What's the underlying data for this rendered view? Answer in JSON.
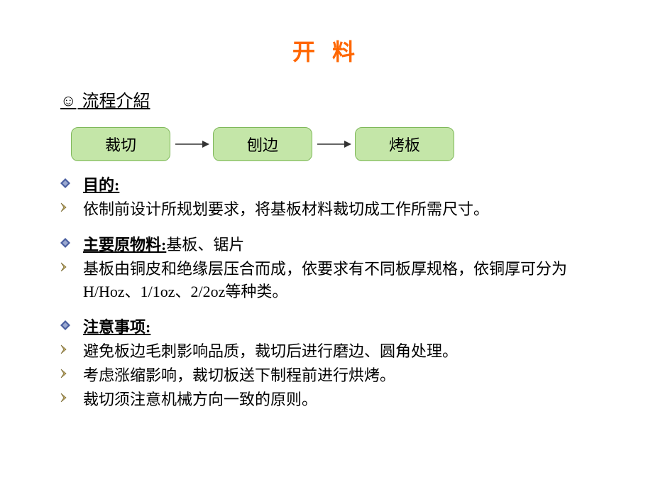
{
  "title": "开 料",
  "heading_prefix": "☺",
  "heading": " 流程介紹",
  "flow": {
    "nodes": [
      "裁切",
      "刨边",
      "烤板"
    ],
    "box_bg": "#c4e6a8",
    "box_border": "#7fb85a",
    "arrow_color": "#333333"
  },
  "bullet_diamond_colors": {
    "outer": "#4a5fa0",
    "inner": "#9aa8d0"
  },
  "chevron_colors": {
    "fill": "#c9b270",
    "stroke": "#7a6a30"
  },
  "sections": [
    {
      "label": "目的:",
      "label_suffix": "",
      "items": [
        "依制前设计所规划要求，将基板材料裁切成工作所需尺寸。"
      ]
    },
    {
      "label": "主要原物料:",
      "label_suffix": "基板、锯片",
      "items": [
        "基板由铜皮和绝缘层压合而成，依要求有不同板厚规格，依铜厚可分为H/Hoz、1/1oz、2/2oz等种类。"
      ]
    },
    {
      "label": "注意事项:",
      "label_suffix": "",
      "items": [
        "避免板边毛刺影响品质，裁切后进行磨边、圆角处理。",
        "考虑涨缩影响，裁切板送下制程前进行烘烤。",
        "裁切须注意机械方向一致的原则。"
      ]
    }
  ]
}
